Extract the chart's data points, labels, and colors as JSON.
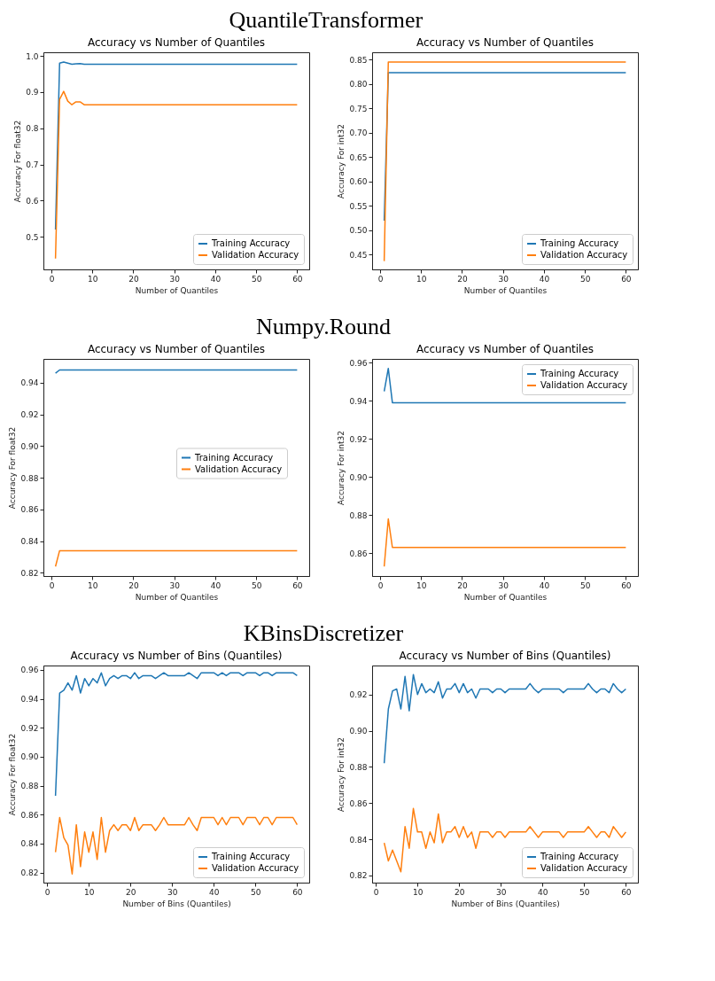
{
  "chart_data": [
    {
      "type": "line",
      "title": "Accuracy vs Number of Quantiles",
      "annotations": [
        "QuantileTransformer"
      ],
      "xlabel": "Number of Quantiles",
      "ylabel": "Accuracy For float32",
      "x": [
        1,
        2,
        3,
        4,
        5,
        6,
        7,
        8,
        60
      ],
      "xlim": [
        -1.95,
        62.95
      ],
      "xticks": [
        0,
        10,
        20,
        30,
        40,
        50,
        60
      ],
      "ylim": [
        0.41,
        1.01
      ],
      "yticks": [
        0.5,
        0.6,
        0.7,
        0.8,
        0.9,
        {
          "value": 1,
          "label": "1.0"
        }
      ],
      "grid": false,
      "legend": "bottom right",
      "marker": "none",
      "line_style": "solid",
      "series": [
        {
          "name": "Training Accuracy",
          "color": "#1f77b4",
          "values": [
            0.52,
            0.98,
            0.983,
            0.98,
            0.977,
            0.978,
            0.979,
            0.977,
            0.977
          ]
        },
        {
          "name": "Validation Accuracy",
          "color": "#ff7f0e",
          "values": [
            0.44,
            0.88,
            0.902,
            0.875,
            0.865,
            0.873,
            0.873,
            0.865,
            0.865
          ]
        }
      ]
    },
    {
      "type": "line",
      "title": "Accuracy vs Number of Quantiles",
      "xlabel": "Number of Quantiles",
      "ylabel": "Accuracy For int32",
      "x": [
        1,
        2,
        60
      ],
      "xlim": [
        -1.95,
        62.95
      ],
      "xticks": [
        0,
        10,
        20,
        30,
        40,
        50,
        60
      ],
      "ylim": [
        0.42,
        0.865
      ],
      "yticks": [
        0.45,
        {
          "value": 0.5,
          "label": "0.50"
        },
        0.55,
        {
          "value": 0.6,
          "label": "0.60"
        },
        0.65,
        {
          "value": 0.7,
          "label": "0.70"
        },
        0.75,
        {
          "value": 0.8,
          "label": "0.80"
        },
        0.85
      ],
      "grid": false,
      "legend": "bottom right",
      "marker": "none",
      "line_style": "solid",
      "series": [
        {
          "name": "Training Accuracy",
          "color": "#1f77b4",
          "values": [
            0.52,
            0.823,
            0.823
          ]
        },
        {
          "name": "Validation Accuracy",
          "color": "#ff7f0e",
          "values": [
            0.437,
            0.845,
            0.845
          ]
        }
      ]
    },
    {
      "type": "line",
      "title": "Accuracy vs Number of Quantiles",
      "annotations": [
        "Numpy.Round"
      ],
      "xlabel": "Number of Quantiles",
      "ylabel": "Accuracy For float32",
      "x": [
        1,
        2,
        60
      ],
      "xlim": [
        -1.95,
        62.95
      ],
      "xticks": [
        0,
        10,
        20,
        30,
        40,
        50,
        60
      ],
      "ylim": [
        0.818,
        0.955
      ],
      "yticks": [
        0.82,
        0.84,
        0.86,
        0.88,
        {
          "value": 0.9,
          "label": "0.90"
        },
        0.92,
        0.94
      ],
      "grid": false,
      "legend": "right",
      "marker": "none",
      "line_style": "solid",
      "series": [
        {
          "name": "Training Accuracy",
          "color": "#1f77b4",
          "values": [
            0.946,
            0.948,
            0.948
          ]
        },
        {
          "name": "Validation Accuracy",
          "color": "#ff7f0e",
          "values": [
            0.824,
            0.834,
            0.834
          ]
        }
      ]
    },
    {
      "type": "line",
      "title": "Accuracy vs Number of Quantiles",
      "xlabel": "Number of Quantiles",
      "ylabel": "Accuracy For int32",
      "x": [
        1,
        2,
        3,
        60
      ],
      "xlim": [
        -1.95,
        62.95
      ],
      "xticks": [
        0,
        10,
        20,
        30,
        40,
        50,
        60
      ],
      "ylim": [
        0.848,
        0.962
      ],
      "yticks": [
        0.86,
        0.88,
        {
          "value": 0.9,
          "label": "0.90"
        },
        0.92,
        0.94,
        0.96
      ],
      "grid": false,
      "legend": "top right",
      "marker": "none",
      "line_style": "solid",
      "series": [
        {
          "name": "Training Accuracy",
          "color": "#1f77b4",
          "values": [
            0.945,
            0.957,
            0.939,
            0.939
          ]
        },
        {
          "name": "Validation Accuracy",
          "color": "#ff7f0e",
          "values": [
            0.853,
            0.878,
            0.863,
            0.863
          ]
        }
      ]
    },
    {
      "type": "line",
      "title": "Accuracy vs Number of Bins (Quantiles)",
      "annotations": [
        "KBinsDiscretizer"
      ],
      "xlabel": "Number of Bins (Quantiles)",
      "ylabel": "Accuracy For float32",
      "x": [
        2,
        3,
        4,
        5,
        6,
        7,
        8,
        9,
        10,
        11,
        12,
        13,
        14,
        15,
        16,
        17,
        18,
        19,
        20,
        21,
        22,
        23,
        24,
        25,
        26,
        27,
        28,
        29,
        30,
        31,
        32,
        33,
        34,
        35,
        36,
        37,
        38,
        39,
        40,
        41,
        42,
        43,
        44,
        45,
        46,
        47,
        48,
        49,
        50,
        51,
        52,
        53,
        54,
        55,
        56,
        57,
        58,
        59,
        60
      ],
      "xlim": [
        -0.9,
        62.9
      ],
      "xticks": [
        0,
        10,
        20,
        30,
        40,
        50,
        60
      ],
      "ylim": [
        0.813,
        0.963
      ],
      "yticks": [
        0.82,
        0.84,
        0.86,
        0.88,
        {
          "value": 0.9,
          "label": "0.90"
        },
        0.92,
        0.94,
        0.96
      ],
      "grid": false,
      "legend": "bottom right",
      "marker": "none",
      "line_style": "solid",
      "series": [
        {
          "name": "Training Accuracy",
          "color": "#1f77b4",
          "values": [
            0.873,
            0.944,
            0.946,
            0.951,
            0.946,
            0.956,
            0.944,
            0.954,
            0.949,
            0.954,
            0.951,
            0.958,
            0.949,
            0.954,
            0.956,
            0.954,
            0.956,
            0.956,
            0.954,
            0.958,
            0.954,
            0.956,
            0.956,
            0.956,
            0.954,
            0.956,
            0.958,
            0.956,
            0.956,
            0.956,
            0.956,
            0.956,
            0.958,
            0.956,
            0.954,
            0.958,
            0.958,
            0.958,
            0.958,
            0.956,
            0.958,
            0.956,
            0.958,
            0.958,
            0.958,
            0.956,
            0.958,
            0.958,
            0.958,
            0.956,
            0.958,
            0.958,
            0.956,
            0.958,
            0.958,
            0.958,
            0.958,
            0.958,
            0.956
          ]
        },
        {
          "name": "Validation Accuracy",
          "color": "#ff7f0e",
          "values": [
            0.834,
            0.858,
            0.844,
            0.839,
            0.819,
            0.853,
            0.824,
            0.848,
            0.834,
            0.848,
            0.829,
            0.858,
            0.834,
            0.849,
            0.853,
            0.849,
            0.853,
            0.853,
            0.849,
            0.858,
            0.849,
            0.853,
            0.853,
            0.853,
            0.849,
            0.853,
            0.858,
            0.853,
            0.853,
            0.853,
            0.853,
            0.853,
            0.858,
            0.853,
            0.849,
            0.858,
            0.858,
            0.858,
            0.858,
            0.853,
            0.858,
            0.853,
            0.858,
            0.858,
            0.858,
            0.853,
            0.858,
            0.858,
            0.858,
            0.853,
            0.858,
            0.858,
            0.853,
            0.858,
            0.858,
            0.858,
            0.858,
            0.858,
            0.853
          ]
        }
      ]
    },
    {
      "type": "line",
      "title": "Accuracy vs Number of Bins (Quantiles)",
      "xlabel": "Number of Bins (Quantiles)",
      "ylabel": "Accuracy For int32",
      "x": [
        2,
        3,
        4,
        5,
        6,
        7,
        8,
        9,
        10,
        11,
        12,
        13,
        14,
        15,
        16,
        17,
        18,
        19,
        20,
        21,
        22,
        23,
        24,
        25,
        26,
        27,
        28,
        29,
        30,
        31,
        32,
        33,
        34,
        35,
        36,
        37,
        38,
        39,
        40,
        41,
        42,
        43,
        44,
        45,
        46,
        47,
        48,
        49,
        50,
        51,
        52,
        53,
        54,
        55,
        56,
        57,
        58,
        59,
        60
      ],
      "xlim": [
        -0.9,
        62.9
      ],
      "xticks": [
        0,
        10,
        20,
        30,
        40,
        50,
        60
      ],
      "ylim": [
        0.816,
        0.936
      ],
      "yticks": [
        0.82,
        0.84,
        0.86,
        0.88,
        {
          "value": 0.9,
          "label": "0.90"
        },
        0.92
      ],
      "grid": false,
      "legend": "bottom right",
      "marker": "none",
      "line_style": "solid",
      "series": [
        {
          "name": "Training Accuracy",
          "color": "#1f77b4",
          "values": [
            0.882,
            0.912,
            0.922,
            0.923,
            0.912,
            0.93,
            0.911,
            0.931,
            0.92,
            0.926,
            0.921,
            0.923,
            0.921,
            0.927,
            0.918,
            0.923,
            0.923,
            0.926,
            0.921,
            0.926,
            0.921,
            0.923,
            0.918,
            0.923,
            0.923,
            0.923,
            0.921,
            0.923,
            0.923,
            0.921,
            0.923,
            0.923,
            0.923,
            0.923,
            0.923,
            0.926,
            0.923,
            0.921,
            0.923,
            0.923,
            0.923,
            0.923,
            0.923,
            0.921,
            0.923,
            0.923,
            0.923,
            0.923,
            0.923,
            0.926,
            0.923,
            0.921,
            0.923,
            0.923,
            0.921,
            0.926,
            0.923,
            0.921,
            0.923
          ]
        },
        {
          "name": "Validation Accuracy",
          "color": "#ff7f0e",
          "values": [
            0.838,
            0.828,
            0.834,
            0.828,
            0.822,
            0.847,
            0.835,
            0.857,
            0.844,
            0.844,
            0.835,
            0.844,
            0.838,
            0.854,
            0.838,
            0.844,
            0.844,
            0.847,
            0.841,
            0.847,
            0.841,
            0.844,
            0.835,
            0.844,
            0.844,
            0.844,
            0.841,
            0.844,
            0.844,
            0.841,
            0.844,
            0.844,
            0.844,
            0.844,
            0.844,
            0.847,
            0.844,
            0.841,
            0.844,
            0.844,
            0.844,
            0.844,
            0.844,
            0.841,
            0.844,
            0.844,
            0.844,
            0.844,
            0.844,
            0.847,
            0.844,
            0.841,
            0.844,
            0.844,
            0.841,
            0.847,
            0.844,
            0.841,
            0.844
          ]
        }
      ]
    }
  ]
}
